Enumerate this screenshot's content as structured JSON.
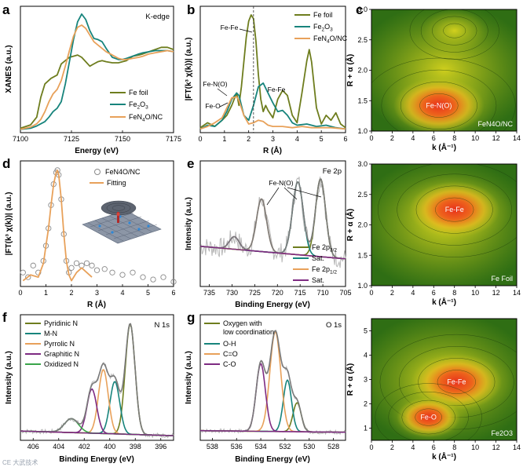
{
  "colors": {
    "olive": "#6e7d1e",
    "teal": "#17847c",
    "orange": "#e8a15a",
    "purple": "#7e2b82",
    "grey": "#8a8a8a",
    "wt_bg": "#2f6e14",
    "wt_mid": "#b9c21e",
    "wt_hot": "#e8301c"
  },
  "watermark": "CE 大武技术",
  "chart_data": [
    {
      "panel": "a",
      "type": "line",
      "corner_label": "K-edge",
      "xlabel": "Energy (eV)",
      "ylabel": "XANES (a.u.)",
      "xlim": [
        7100,
        7175
      ],
      "xticks": [
        7100,
        7125,
        7150,
        7175
      ],
      "series": [
        {
          "name": "Fe foil",
          "color": "olive",
          "x": [
            7100,
            7105,
            7108,
            7110,
            7112,
            7115,
            7118,
            7120,
            7122,
            7124,
            7126,
            7128,
            7130,
            7132,
            7134,
            7136,
            7138,
            7140,
            7142,
            7145,
            7148,
            7150,
            7152,
            7155,
            7158,
            7160,
            7163,
            7166,
            7169,
            7172,
            7175
          ],
          "y": [
            0.02,
            0.05,
            0.12,
            0.3,
            0.42,
            0.47,
            0.5,
            0.6,
            0.63,
            0.66,
            0.67,
            0.68,
            0.66,
            0.62,
            0.58,
            0.6,
            0.62,
            0.63,
            0.62,
            0.61,
            0.61,
            0.62,
            0.63,
            0.67,
            0.68,
            0.69,
            0.71,
            0.73,
            0.75,
            0.75,
            0.73
          ]
        },
        {
          "name": "Fe2O3",
          "color": "teal",
          "x": [
            7100,
            7105,
            7108,
            7110,
            7112,
            7114,
            7116,
            7118,
            7120,
            7122,
            7124,
            7126,
            7128,
            7130,
            7132,
            7134,
            7136,
            7138,
            7140,
            7142,
            7145,
            7148,
            7150,
            7152,
            7155,
            7158,
            7160,
            7163,
            7166,
            7169,
            7172,
            7175
          ],
          "y": [
            0.01,
            0.02,
            0.04,
            0.06,
            0.08,
            0.12,
            0.17,
            0.2,
            0.26,
            0.42,
            0.62,
            0.82,
            0.98,
            1.05,
            1.0,
            0.9,
            0.83,
            0.82,
            0.8,
            0.74,
            0.66,
            0.64,
            0.64,
            0.65,
            0.67,
            0.69,
            0.7,
            0.71,
            0.72,
            0.72,
            0.72,
            0.71
          ]
        },
        {
          "name": "FeN4O/NC",
          "color": "orange",
          "x": [
            7100,
            7105,
            7108,
            7110,
            7112,
            7114,
            7116,
            7118,
            7120,
            7122,
            7124,
            7126,
            7128,
            7130,
            7132,
            7134,
            7136,
            7138,
            7140,
            7142,
            7145,
            7148,
            7150,
            7152,
            7155,
            7158,
            7160,
            7163,
            7166,
            7169,
            7172,
            7175
          ],
          "y": [
            0.01,
            0.03,
            0.06,
            0.1,
            0.17,
            0.26,
            0.33,
            0.37,
            0.45,
            0.58,
            0.72,
            0.85,
            0.93,
            0.95,
            0.92,
            0.86,
            0.8,
            0.77,
            0.74,
            0.71,
            0.68,
            0.65,
            0.64,
            0.64,
            0.65,
            0.66,
            0.67,
            0.69,
            0.7,
            0.71,
            0.72,
            0.71
          ]
        }
      ]
    },
    {
      "panel": "b",
      "type": "line",
      "xlabel": "R (Å)",
      "ylabel": "|FT(k3 χ(k))| (a.u.)",
      "xlim": [
        0,
        6
      ],
      "xticks": [
        0,
        1,
        2,
        3,
        4,
        5,
        6
      ],
      "dashed_line_x": 2.2,
      "legend": [
        "Fe foil",
        "Fe2O3",
        "FeN4O/NC"
      ],
      "annotations": [
        {
          "text": "Fe-Fe",
          "x": 2.2,
          "y": 0.93
        },
        {
          "text": "Fe-Fe",
          "x": 2.6,
          "y": 0.4
        },
        {
          "text": "Fe-N(O)",
          "x": 1.4,
          "y": 0.37
        },
        {
          "text": "Fe-O",
          "x": 1.3,
          "y": 0.25
        }
      ],
      "series": [
        {
          "name": "Fe foil",
          "color": "olive",
          "x": [
            0,
            0.3,
            0.6,
            0.9,
            1.1,
            1.3,
            1.5,
            1.6,
            1.7,
            1.8,
            1.9,
            2.0,
            2.1,
            2.2,
            2.3,
            2.4,
            2.5,
            2.6,
            2.7,
            2.8,
            3.0,
            3.2,
            3.4,
            3.6,
            3.8,
            4.0,
            4.2,
            4.4,
            4.5,
            4.6,
            4.8,
            5.0,
            5.2,
            5.4,
            5.6,
            5.8,
            6.0
          ],
          "y": [
            0.02,
            0.06,
            0.03,
            0.08,
            0.12,
            0.2,
            0.3,
            0.2,
            0.35,
            0.55,
            0.75,
            0.88,
            0.93,
            0.9,
            0.72,
            0.45,
            0.25,
            0.15,
            0.2,
            0.16,
            0.1,
            0.25,
            0.32,
            0.28,
            0.12,
            0.06,
            0.3,
            0.56,
            0.65,
            0.55,
            0.18,
            0.05,
            0.12,
            0.08,
            0.14,
            0.05,
            0.02
          ]
        },
        {
          "name": "Fe2O3",
          "color": "teal",
          "x": [
            0,
            0.3,
            0.6,
            0.9,
            1.1,
            1.3,
            1.5,
            1.6,
            1.8,
            2.0,
            2.2,
            2.4,
            2.6,
            2.8,
            3.0,
            3.2,
            3.4,
            3.6,
            3.8,
            4.0,
            4.4,
            4.8,
            5.2,
            5.6,
            6.0
          ],
          "y": [
            0.01,
            0.04,
            0.03,
            0.08,
            0.15,
            0.25,
            0.3,
            0.28,
            0.12,
            0.08,
            0.2,
            0.35,
            0.38,
            0.3,
            0.22,
            0.15,
            0.16,
            0.12,
            0.06,
            0.04,
            0.05,
            0.03,
            0.04,
            0.02,
            0.01
          ]
        },
        {
          "name": "FeN4O/NC",
          "color": "orange",
          "x": [
            0,
            0.3,
            0.6,
            0.9,
            1.1,
            1.3,
            1.5,
            1.6,
            1.8,
            2.0,
            2.2,
            2.4,
            2.6,
            2.8,
            3.0,
            3.4,
            3.8,
            4.2,
            4.6,
            5.0,
            5.4,
            6.0
          ],
          "y": [
            0.01,
            0.03,
            0.06,
            0.1,
            0.18,
            0.26,
            0.27,
            0.24,
            0.12,
            0.05,
            0.06,
            0.08,
            0.07,
            0.04,
            0.03,
            0.03,
            0.02,
            0.03,
            0.02,
            0.02,
            0.02,
            0.01
          ]
        }
      ]
    },
    {
      "panel": "c",
      "type": "heatmap",
      "xlabel": "k (Å-1)",
      "ylabel": "R + α (Å)",
      "xlim": [
        0,
        14
      ],
      "ylim": [
        1.0,
        3.0
      ],
      "label": "Fe-N(O)",
      "sample": "FeN4O/NC",
      "hotspots": [
        {
          "label": "Fe-N(O)",
          "k": 6.5,
          "R": 1.42,
          "intensity": 1.0
        },
        {
          "k": 8,
          "R": 2.65,
          "intensity": 0.45
        }
      ]
    },
    {
      "panel": "c2",
      "type": "heatmap",
      "xlabel": "k (Å-1)",
      "ylabel": "R + α (Å)",
      "xlim": [
        0,
        14
      ],
      "ylim": [
        1.0,
        3.0
      ],
      "label": "Fe-Fe",
      "sample": "Fe Foil",
      "hotspots": [
        {
          "label": "Fe-Fe",
          "k": 8,
          "R": 2.25,
          "intensity": 1.0
        }
      ]
    },
    {
      "panel": "c3",
      "type": "heatmap",
      "xlabel": "k (Å-1)",
      "ylabel": "R + α (Å)",
      "xlim": [
        0,
        14
      ],
      "ylim": [
        0.5,
        5.5
      ],
      "sample": "Fe2O3",
      "hotspots": [
        {
          "label": "Fe-Fe",
          "k": 8.2,
          "R": 2.9,
          "intensity": 1.0
        },
        {
          "label": "Fe-O",
          "k": 5.5,
          "R": 1.45,
          "intensity": 0.6
        }
      ]
    },
    {
      "panel": "d",
      "type": "line",
      "xlabel": "R (Å)",
      "ylabel": "|FT(k3 χ(k))| (a.u.)",
      "xlim": [
        0,
        6
      ],
      "xticks": [
        0,
        1,
        2,
        3,
        4,
        5,
        6
      ],
      "legend": [
        "FeN4O/NC",
        "Fitting"
      ],
      "series": [
        {
          "name": "FeN4O/NC",
          "marker": "circle",
          "color": "grey",
          "x": [
            0.1,
            0.3,
            0.5,
            0.7,
            0.9,
            1.0,
            1.1,
            1.2,
            1.3,
            1.4,
            1.45,
            1.5,
            1.6,
            1.7,
            1.8,
            1.9,
            2.0,
            2.2,
            2.4,
            2.6,
            2.8,
            3.0,
            3.3,
            3.6,
            4.0,
            4.4,
            4.8,
            5.2,
            5.6,
            6.0
          ],
          "y": [
            0.12,
            0.08,
            0.18,
            0.12,
            0.22,
            0.35,
            0.5,
            0.7,
            0.88,
            0.98,
            1.0,
            0.96,
            0.75,
            0.45,
            0.22,
            0.12,
            0.16,
            0.2,
            0.18,
            0.2,
            0.18,
            0.14,
            0.15,
            0.12,
            0.1,
            0.12,
            0.08,
            0.06,
            0.08,
            0.04
          ]
        },
        {
          "name": "Fitting",
          "color": "orange",
          "x": [
            0.1,
            0.4,
            0.7,
            0.9,
            1.0,
            1.1,
            1.2,
            1.3,
            1.4,
            1.45,
            1.5,
            1.6,
            1.7,
            1.8,
            1.9,
            2.0,
            2.2,
            2.4,
            2.6,
            2.8
          ],
          "y": [
            0.05,
            0.1,
            0.08,
            0.2,
            0.35,
            0.5,
            0.7,
            0.88,
            0.98,
            1.0,
            0.96,
            0.75,
            0.45,
            0.22,
            0.1,
            0.05,
            0.12,
            0.16,
            0.12,
            0.08
          ]
        }
      ]
    },
    {
      "panel": "e",
      "type": "line",
      "corner_label": "Fe 2p",
      "xlabel": "Binding Energy (eV)",
      "ylabel": "Intensity (a.u.)",
      "xlim": [
        737,
        705
      ],
      "xticks": [
        735,
        730,
        725,
        720,
        715,
        710,
        705
      ],
      "annotation": "Fe-N(O)",
      "legend": [
        "Fe 2p3/2",
        "Sat.",
        "Fe 2p1/2",
        "Sat."
      ],
      "peaks": [
        {
          "name": "Fe 2p3/2",
          "color": "olive",
          "center": 710.5,
          "height": 0.62,
          "width": 2.6
        },
        {
          "name": "Sat.",
          "color": "teal",
          "center": 715.5,
          "height": 0.58,
          "width": 2.8
        },
        {
          "name": "Fe 2p1/2",
          "color": "orange",
          "center": 723.5,
          "height": 0.42,
          "width": 2.6
        },
        {
          "name": "Sat.",
          "color": "purple",
          "center": 729.5,
          "height": 0.1,
          "width": 2.5
        }
      ]
    },
    {
      "panel": "f",
      "type": "line",
      "corner_label": "N 1s",
      "xlabel": "Binding Energy (eV)",
      "ylabel": "Intensity (a.u.)",
      "xlim": [
        407,
        395
      ],
      "xticks": [
        406,
        404,
        402,
        400,
        398,
        396
      ],
      "legend": [
        "Pyridinic N",
        "M-N",
        "Pyrrolic N",
        "Graphitic N",
        "Oxidized N"
      ],
      "peaks": [
        {
          "name": "Pyridinic N",
          "color": "olive",
          "center": 398.4,
          "height": 0.95,
          "width": 0.9
        },
        {
          "name": "M-N",
          "color": "teal",
          "center": 399.6,
          "height": 0.45,
          "width": 0.9
        },
        {
          "name": "Pyrrolic N",
          "color": "orange",
          "center": 400.5,
          "height": 0.55,
          "width": 0.9
        },
        {
          "name": "Graphitic N",
          "color": "purple",
          "center": 401.4,
          "height": 0.38,
          "width": 0.9
        },
        {
          "name": "Oxidized N",
          "color": "green",
          "center": 403.0,
          "height": 0.12,
          "width": 1.3
        }
      ]
    },
    {
      "panel": "g",
      "type": "line",
      "corner_label": "O 1s",
      "xlabel": "Binding Energy (eV)",
      "ylabel": "Intensity (a.u.)",
      "xlim": [
        539,
        527
      ],
      "xticks": [
        538,
        536,
        534,
        532,
        530,
        528
      ],
      "legend": [
        "Oxygen with low coordination",
        "O-H",
        "C=O",
        "C-O"
      ],
      "peaks": [
        {
          "name": "Oxygen with low coordination",
          "color": "olive",
          "center": 531.0,
          "height": 0.18,
          "width": 0.8
        },
        {
          "name": "O-H",
          "color": "teal",
          "center": 531.8,
          "height": 0.32,
          "width": 0.8
        },
        {
          "name": "C=O",
          "color": "orange",
          "center": 532.8,
          "height": 0.62,
          "width": 1.05
        },
        {
          "name": "C-O",
          "color": "purple",
          "center": 534.0,
          "height": 0.42,
          "width": 0.9
        }
      ]
    }
  ],
  "text": {
    "a": {
      "letter": "a",
      "corner": "K-edge",
      "xlabel": "Energy (eV)",
      "ylabel": "XANES (a.u.)",
      "legend": [
        "Fe foil",
        "Fe2O3",
        "FeN4O/NC"
      ],
      "legend_plain": [
        "Fe foil",
        "Fe",
        "O",
        "FeN",
        "O/NC"
      ]
    },
    "b": {
      "letter": "b",
      "xlabel": "R (Å)",
      "ylabel": "|FT(k³ χ(k))| (a.u.)",
      "ann_fefe1": "Fe-Fe",
      "ann_fefe2": "Fe-Fe",
      "ann_fen": "Fe-N(O)",
      "ann_feo": "Fe-O"
    },
    "c": {
      "letter": "c",
      "xlabel": "k (Å⁻¹)",
      "ylabel": "R + α (Å)"
    },
    "d": {
      "letter": "d",
      "xlabel": "R (Å)",
      "ylabel": "|FT(k³ χ(k))| (a.u.)",
      "legend_data": "FeN4O/NC",
      "legend_fit": "Fitting"
    },
    "e": {
      "letter": "e",
      "corner": "Fe 2p",
      "xlabel": "Binding Energy (eV)",
      "ylabel": "Intensity (a.u.)",
      "ann": "Fe-N(O)"
    },
    "f": {
      "letter": "f",
      "corner": "N 1s",
      "xlabel": "Binding Energy (eV)",
      "ylabel": "Intensity (a.u.)"
    },
    "g": {
      "letter": "g",
      "corner": "O 1s",
      "xlabel": "Binding Energy (eV)",
      "ylabel": "Intensity (a.u.)",
      "legend_l1": "Oxygen with",
      "legend_l2": "low coordination"
    }
  }
}
